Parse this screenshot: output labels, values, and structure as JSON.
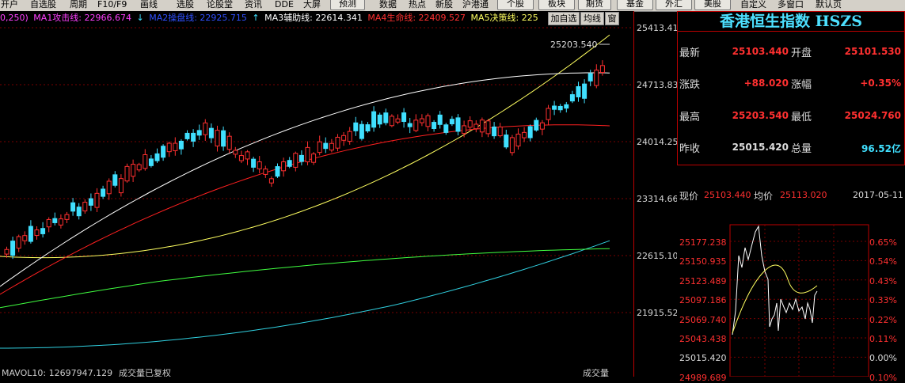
{
  "toolbar": {
    "items": [
      "开户",
      "自选股",
      "周期",
      "F10/F9",
      "画线",
      "选股",
      "论股堂",
      "资讯",
      "DDE",
      "大屏",
      "预测",
      "数据",
      "热点",
      "新股",
      "沪港通",
      "个股",
      "板块",
      "期货",
      "基金",
      "外汇",
      "美股",
      "自定义",
      "多窗口",
      "默认页"
    ]
  },
  "ma_bar": {
    "params": "0,250)",
    "ma1": "MA1攻击线: 22966.674",
    "ma1_arrow": "↓",
    "ma2": "MA2操盘线: 22925.715",
    "ma2_arrow": "↑",
    "ma3": "MA3辅助线: 22614.341",
    "ma4": "MA4生命线: 22409.527",
    "ma5": "MA5决策线: 225",
    "btn_add": "加自选",
    "btn_ma": "均线",
    "btn_win": "窗"
  },
  "colors": {
    "ma1": "#ff40ff",
    "ma2": "#3050ff",
    "ma3": "#ffffff",
    "ma4": "#ff2020",
    "ma5": "#ffff60",
    "ma6": "#40ff40",
    "ma7": "#30d0e0",
    "up": "#ff3030",
    "down": "#40e0ff",
    "price_red": "#ff3030",
    "panel_border": "#b00000"
  },
  "axis": {
    "labels": [
      "25413.41",
      "24713.83",
      "24014.25",
      "23314.66",
      "22615.10",
      "21915.52"
    ],
    "high_marker": "25203.540"
  },
  "quote": {
    "title": "香港恒生指数 HSZS",
    "rows": [
      {
        "l1": "最新",
        "v1": "25103.440",
        "l2": "开盘",
        "v2": "25101.530"
      },
      {
        "l1": "涨跌",
        "v1": "+88.020",
        "l2": "涨幅",
        "v2": "+0.35%"
      },
      {
        "l1": "最高",
        "v1": "25203.540",
        "l2": "最低",
        "v2": "25024.760"
      },
      {
        "l1": "昨收",
        "v1": "25015.420",
        "l2": "总量",
        "v2": "96.52亿"
      }
    ],
    "now_label": "现价",
    "now_value": "25103.440",
    "avg_label": "均价",
    "avg_value": "25113.020",
    "date": "2017-05-11"
  },
  "mini_chart": {
    "price_labels": [
      "25177.238",
      "25150.935",
      "25123.489",
      "25097.186",
      "25069.740",
      "25043.438",
      "25015.420",
      "24989.689"
    ],
    "pct_labels": [
      "0.65%",
      "0.54%",
      "0.43%",
      "0.33%",
      "0.22%",
      "0.11%",
      "0.00%",
      "0.10%"
    ]
  },
  "bottom": {
    "left": "MAVOL10: 12697947.129",
    "mid": "成交量已复权",
    "right": "成交量"
  },
  "chart_data": {
    "type": "candlestick",
    "y_axis_labels": [
      25413.41,
      24713.83,
      24014.25,
      23314.66,
      22615.1,
      21915.52
    ],
    "high_label": 25203.54
  }
}
